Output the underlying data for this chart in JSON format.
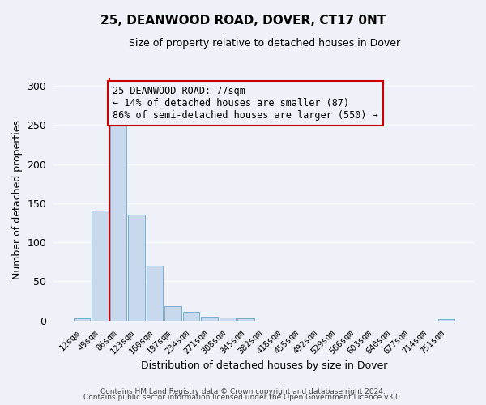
{
  "title": "25, DEANWOOD ROAD, DOVER, CT17 0NT",
  "subtitle": "Size of property relative to detached houses in Dover",
  "xlabel": "Distribution of detached houses by size in Dover",
  "ylabel": "Number of detached properties",
  "bin_labels": [
    "12sqm",
    "49sqm",
    "86sqm",
    "123sqm",
    "160sqm",
    "197sqm",
    "234sqm",
    "271sqm",
    "308sqm",
    "345sqm",
    "382sqm",
    "418sqm",
    "455sqm",
    "492sqm",
    "529sqm",
    "566sqm",
    "603sqm",
    "640sqm",
    "677sqm",
    "714sqm",
    "751sqm"
  ],
  "bar_values": [
    3,
    140,
    252,
    135,
    70,
    18,
    11,
    5,
    4,
    3,
    0,
    0,
    0,
    0,
    0,
    0,
    0,
    0,
    0,
    0,
    2
  ],
  "bar_color": "#c8d9ee",
  "bar_edge_color": "#7aadd4",
  "vline_color": "#cc0000",
  "annotation_title": "25 DEANWOOD ROAD: 77sqm",
  "annotation_line1": "← 14% of detached houses are smaller (87)",
  "annotation_line2": "86% of semi-detached houses are larger (550) →",
  "annotation_box_edge": "#cc0000",
  "ylim": [
    0,
    310
  ],
  "yticks": [
    0,
    50,
    100,
    150,
    200,
    250,
    300
  ],
  "footer1": "Contains HM Land Registry data © Crown copyright and database right 2024.",
  "footer2": "Contains public sector information licensed under the Open Government Licence v3.0.",
  "bg_color": "#eef2f8",
  "grid_color": "#ffffff"
}
